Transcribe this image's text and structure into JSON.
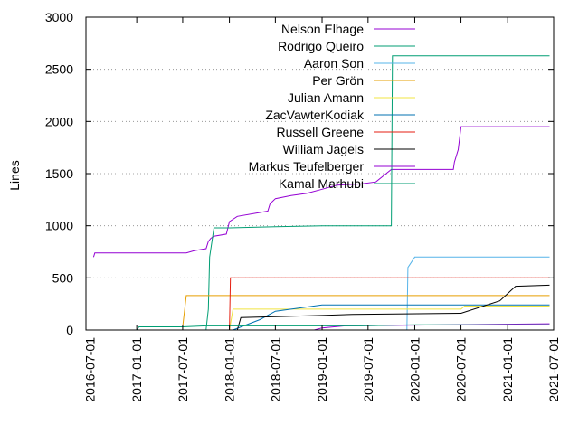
{
  "chart_data": {
    "type": "line",
    "title": "",
    "xlabel": "",
    "ylabel": "Lines",
    "ylim": [
      0,
      3000
    ],
    "xlim": [
      "2016-06-15",
      "2021-07-01"
    ],
    "yticks": [
      0,
      500,
      1000,
      1500,
      2000,
      2500,
      3000
    ],
    "xticks": [
      "2016-07-01",
      "2017-01-01",
      "2017-07-01",
      "2018-01-01",
      "2018-07-01",
      "2019-01-01",
      "2019-07-01",
      "2020-01-01",
      "2020-07-01",
      "2021-01-01",
      "2021-07-01"
    ],
    "grid": "y-dotted",
    "legend": "top-center",
    "series": [
      {
        "name": "Nelson Elhage",
        "color": "#9400d3",
        "points": [
          [
            "2016-07-15",
            700
          ],
          [
            "2016-07-20",
            740
          ],
          [
            "2017-07-15",
            740
          ],
          [
            "2017-08-15",
            760
          ],
          [
            "2017-10-01",
            780
          ],
          [
            "2017-10-10",
            850
          ],
          [
            "2017-10-20",
            880
          ],
          [
            "2017-11-01",
            900
          ],
          [
            "2017-12-20",
            920
          ],
          [
            "2018-01-01",
            1040
          ],
          [
            "2018-02-01",
            1090
          ],
          [
            "2018-06-01",
            1140
          ],
          [
            "2018-06-10",
            1210
          ],
          [
            "2018-07-01",
            1260
          ],
          [
            "2018-09-01",
            1290
          ],
          [
            "2018-11-01",
            1310
          ],
          [
            "2019-01-01",
            1350
          ],
          [
            "2019-03-01",
            1390
          ],
          [
            "2019-06-01",
            1400
          ],
          [
            "2019-08-01",
            1420
          ],
          [
            "2019-10-01",
            1540
          ],
          [
            "2020-06-01",
            1540
          ],
          [
            "2020-06-05",
            1610
          ],
          [
            "2020-06-20",
            1730
          ],
          [
            "2020-07-01",
            1950
          ],
          [
            "2021-06-15",
            1950
          ]
        ]
      },
      {
        "name": "Rodrigo Queiro",
        "color": "#009e73",
        "points": [
          [
            "2017-10-01",
            5
          ],
          [
            "2017-10-10",
            200
          ],
          [
            "2017-10-15",
            700
          ],
          [
            "2017-11-01",
            980
          ],
          [
            "2018-01-01",
            980
          ],
          [
            "2018-07-01",
            990
          ],
          [
            "2019-01-01",
            1000
          ],
          [
            "2019-10-01",
            1000
          ],
          [
            "2019-10-05",
            2630
          ],
          [
            "2021-06-15",
            2630
          ]
        ]
      },
      {
        "name": "Aaron Son",
        "color": "#56b4e9",
        "points": [
          [
            "2019-12-01",
            0
          ],
          [
            "2019-12-05",
            600
          ],
          [
            "2020-01-01",
            700
          ],
          [
            "2021-06-15",
            700
          ]
        ]
      },
      {
        "name": "Per Grön",
        "color": "#e69f00",
        "points": [
          [
            "2017-07-01",
            30
          ],
          [
            "2017-07-15",
            330
          ],
          [
            "2021-06-15",
            330
          ]
        ]
      },
      {
        "name": "Julian Amann",
        "color": "#f0e442",
        "points": [
          [
            "2018-01-01",
            0
          ],
          [
            "2018-01-15",
            200
          ],
          [
            "2020-07-01",
            200
          ],
          [
            "2020-07-15",
            230
          ],
          [
            "2021-06-15",
            230
          ]
        ]
      },
      {
        "name": "ZacVawterKodiak",
        "color": "#0072b2",
        "points": [
          [
            "2018-01-15",
            0
          ],
          [
            "2018-05-01",
            100
          ],
          [
            "2018-07-01",
            180
          ],
          [
            "2019-01-01",
            240
          ],
          [
            "2021-06-15",
            240
          ]
        ]
      },
      {
        "name": "Russell Greene",
        "color": "#e51e10",
        "points": [
          [
            "2018-01-01",
            0
          ],
          [
            "2018-01-05",
            500
          ],
          [
            "2021-06-15",
            500
          ]
        ]
      },
      {
        "name": "William Jagels",
        "color": "#000000",
        "points": [
          [
            "2018-02-01",
            0
          ],
          [
            "2018-02-15",
            120
          ],
          [
            "2019-01-01",
            140
          ],
          [
            "2019-05-01",
            150
          ],
          [
            "2020-07-01",
            160
          ],
          [
            "2020-12-01",
            280
          ],
          [
            "2021-02-01",
            420
          ],
          [
            "2021-06-15",
            430
          ]
        ]
      },
      {
        "name": "Markus Teufelberger",
        "color": "#9400d3",
        "points": [
          [
            "2018-12-01",
            0
          ],
          [
            "2019-01-01",
            20
          ],
          [
            "2019-04-01",
            40
          ],
          [
            "2021-06-15",
            60
          ]
        ]
      },
      {
        "name": "Kamal Marhubi",
        "color": "#009e73",
        "points": [
          [
            "2017-01-01",
            0
          ],
          [
            "2017-01-10",
            30
          ],
          [
            "2017-07-01",
            30
          ],
          [
            "2017-10-01",
            40
          ],
          [
            "2019-06-01",
            40
          ],
          [
            "2020-01-01",
            50
          ],
          [
            "2021-06-15",
            50
          ]
        ]
      }
    ]
  }
}
